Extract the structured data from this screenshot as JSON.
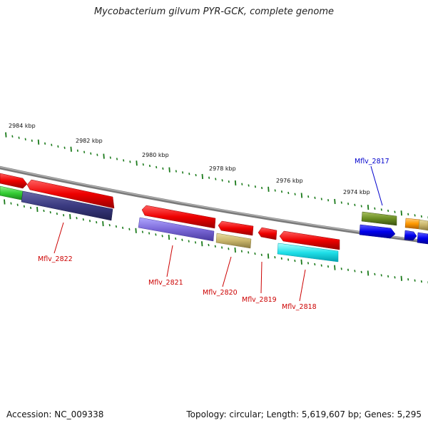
{
  "title": "Mycobacterium gilvum PYR-GCK, complete genome",
  "footer": {
    "accession": "Accession: NC_009338",
    "topology": "Topology: circular; Length: 5,619,607 bp; Genes: 5,295"
  },
  "colors": {
    "backbone": "#8a8a8a",
    "tick": "#1a7a1a",
    "label_red": "#cc0000",
    "label_blue": "#0000cc"
  },
  "scale_labels": [
    "2984 kbp",
    "2982 kbp",
    "2980 kbp",
    "2978 kbp",
    "2976 kbp",
    "2974 kbp"
  ],
  "gene_labels": [
    {
      "name": "Mflv_2822",
      "color": "#cc0000"
    },
    {
      "name": "Mflv_2821",
      "color": "#cc0000"
    },
    {
      "name": "Mflv_2820",
      "color": "#cc0000"
    },
    {
      "name": "Mflv_2819",
      "color": "#cc0000"
    },
    {
      "name": "Mflv_2818",
      "color": "#cc0000"
    },
    {
      "name": "Mflv_2817",
      "color": "#0000cc"
    }
  ]
}
